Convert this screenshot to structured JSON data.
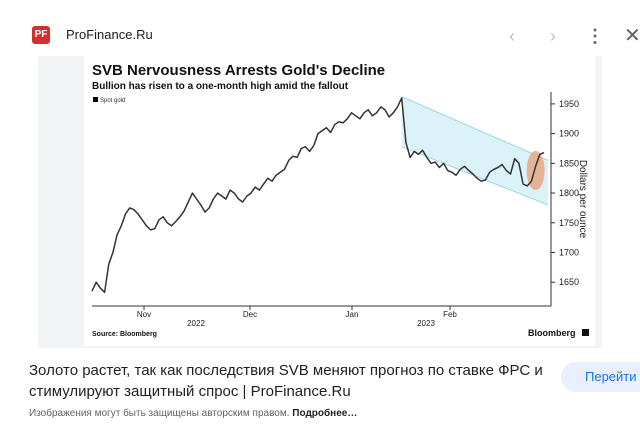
{
  "header": {
    "favicon_text": "PF",
    "site_name": "ProFinance.Ru",
    "prev_icon": "chevron-left-icon",
    "next_icon": "chevron-right-icon",
    "more_icon": "more-vert-icon",
    "close_icon": "close-icon"
  },
  "chart_data": {
    "type": "line",
    "title": "SVB Nervousness Arrests Gold's Decline",
    "subtitle": "Bullion has risen to a one-month high amid the fallout",
    "legend": [
      "Spot gold"
    ],
    "legend_position": "top-left",
    "ylabel": "Dollars per ounce",
    "ylim": [
      1610,
      1970
    ],
    "yticks": [
      1650,
      1700,
      1750,
      1800,
      1850,
      1900,
      1950
    ],
    "xticks": [
      "Nov",
      "Dec",
      "Jan",
      "Feb"
    ],
    "xyears": [
      "2022",
      "2023"
    ],
    "source": "Source: Bloomberg",
    "brand": "Bloomberg",
    "grid": false,
    "colors": {
      "line": "#333333",
      "channel": "#cdeef6",
      "highlight": "#e9a27a"
    },
    "series": [
      {
        "name": "Spot gold",
        "values": [
          1635,
          1650,
          1640,
          1633,
          1680,
          1700,
          1730,
          1745,
          1765,
          1775,
          1772,
          1765,
          1755,
          1745,
          1738,
          1740,
          1755,
          1760,
          1750,
          1745,
          1752,
          1760,
          1770,
          1785,
          1800,
          1790,
          1780,
          1768,
          1775,
          1790,
          1800,
          1795,
          1790,
          1805,
          1800,
          1790,
          1785,
          1795,
          1800,
          1810,
          1805,
          1815,
          1825,
          1820,
          1830,
          1835,
          1840,
          1855,
          1862,
          1860,
          1875,
          1878,
          1870,
          1880,
          1900,
          1905,
          1910,
          1902,
          1915,
          1920,
          1918,
          1925,
          1935,
          1930,
          1925,
          1935,
          1940,
          1930,
          1935,
          1945,
          1940,
          1928,
          1935,
          1945,
          1960,
          1885,
          1860,
          1870,
          1865,
          1872,
          1860,
          1850,
          1852,
          1843,
          1850,
          1838,
          1835,
          1830,
          1840,
          1845,
          1838,
          1832,
          1825,
          1820,
          1822,
          1835,
          1840,
          1843,
          1848,
          1838,
          1832,
          1858,
          1850,
          1815,
          1812,
          1820,
          1845,
          1865,
          1868
        ]
      }
    ]
  },
  "caption": "Золото растет, так как последствия SVB меняют прогноз по ставке ФРС и стимулируют защитный спрос | ProFinance.Ru",
  "go_button": "Перейти",
  "notice": {
    "text": "Изображения могут быть защищены авторским правом.",
    "link": "Подробнее…"
  }
}
